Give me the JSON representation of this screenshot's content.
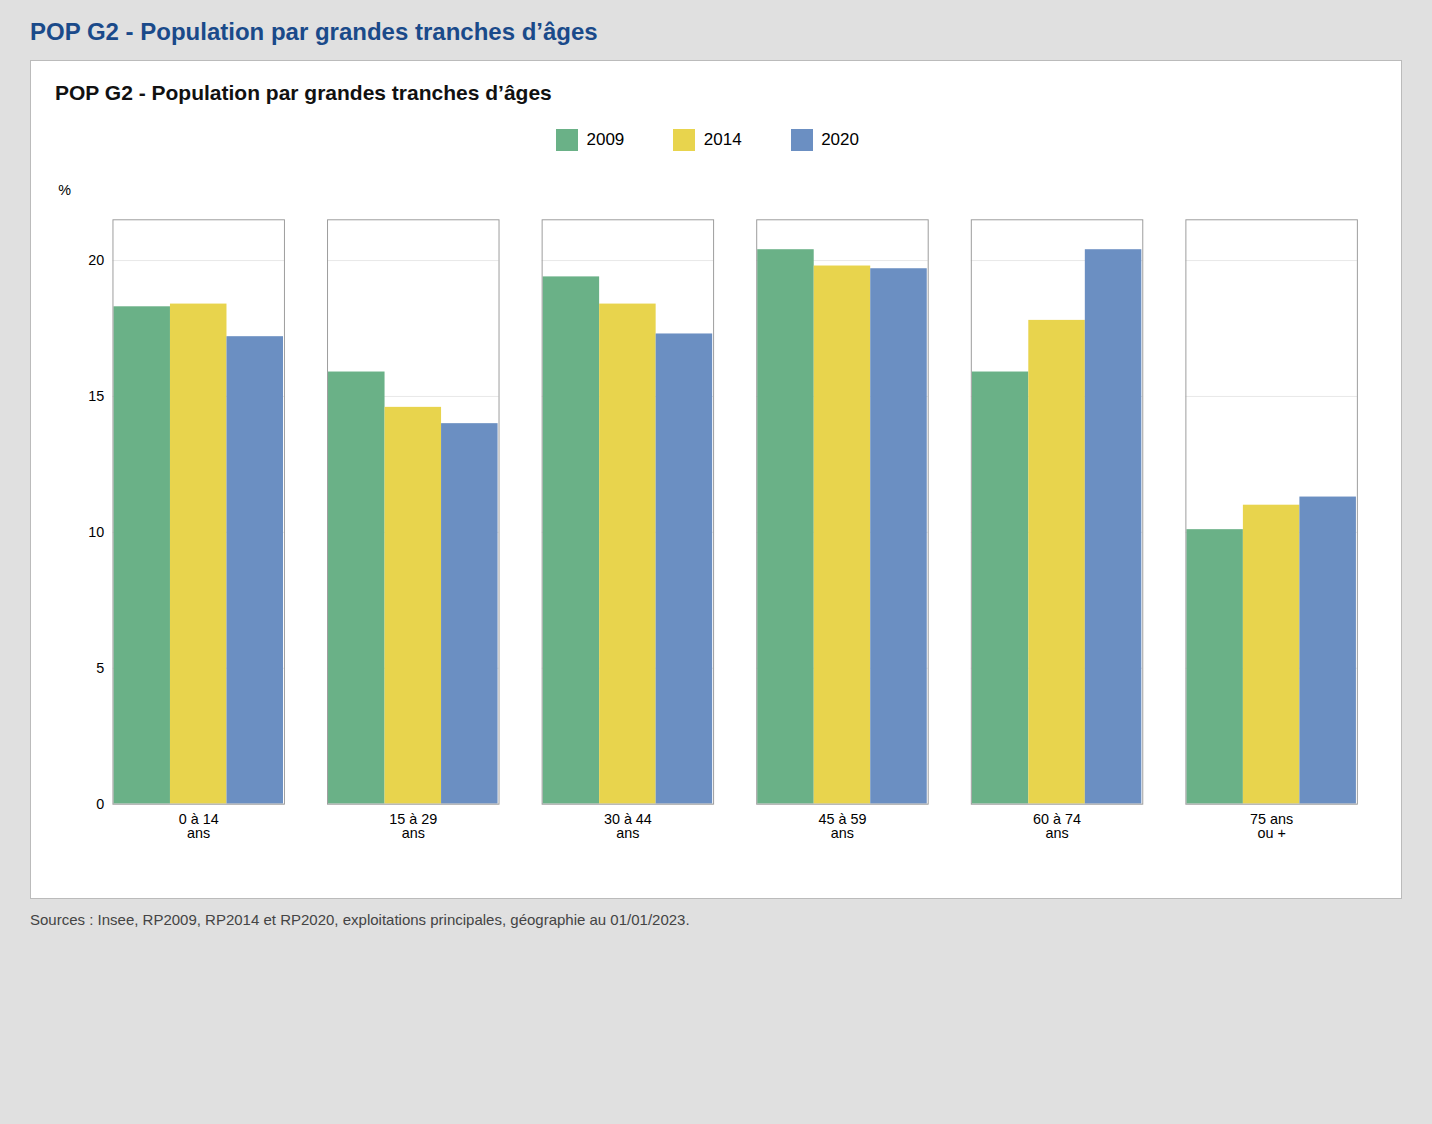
{
  "chart_data": {
    "type": "bar",
    "title": "POP G2 - Population par grandes tranches d’âges",
    "subtitle": "POP G2 - Population par grandes tranches d’âges",
    "categories": [
      "0 à 14\nans",
      "15 à 29\nans",
      "30 à 44\nans",
      "45 à 59\nans",
      "60 à 74\nans",
      "75 ans\nou +"
    ],
    "series": [
      {
        "name": "2009",
        "color": "#6ab187",
        "values": [
          18.3,
          15.9,
          19.4,
          20.4,
          15.9,
          10.1
        ]
      },
      {
        "name": "2014",
        "color": "#e8d44d",
        "values": [
          18.4,
          14.6,
          18.4,
          19.8,
          17.8,
          11.0
        ]
      },
      {
        "name": "2020",
        "color": "#6b8fc2",
        "values": [
          17.2,
          14.0,
          17.3,
          19.7,
          20.4,
          11.3
        ]
      }
    ],
    "ylabel": "%",
    "ylim": [
      0,
      21.5
    ],
    "yticks": [
      0,
      5,
      10,
      15,
      20
    ],
    "grid": true,
    "legend": "top",
    "source": "Sources : Insee, RP2009, RP2014 et RP2020, exploitations principales, géographie au 01/01/2023."
  }
}
